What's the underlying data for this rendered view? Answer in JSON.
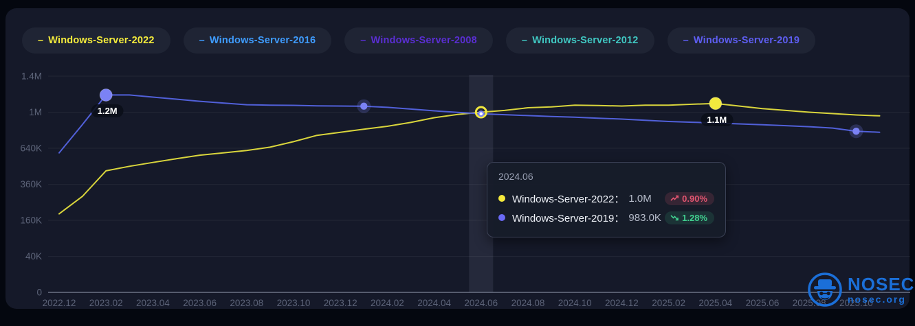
{
  "theme": {
    "page_bg": "#04070f",
    "card_bg": "#151929",
    "pill_bg": "#1f2434",
    "grid_color": "rgba(255,255,255,0.06)",
    "axis_line_color": "#7e8598",
    "tick_text_color": "#5c6378",
    "highlight_band_color": "rgba(205,215,240,0.09)",
    "badge_up_text": "#e25570",
    "badge_up_bg": "rgba(226,85,112,0.16)",
    "badge_down_text": "#41cf8f",
    "badge_down_bg": "rgba(65,207,143,0.13)"
  },
  "legend": {
    "dash": "–",
    "items": [
      {
        "label": "Windows-Server-2022",
        "color": "#f5ec3c"
      },
      {
        "label": "Windows-Server-2016",
        "color": "#3f9cfe"
      },
      {
        "label": "Windows-Server-2008",
        "color": "#5a2ed2"
      },
      {
        "label": "Windows-Server-2012",
        "color": "#40c7c2"
      },
      {
        "label": "Windows-Server-2019",
        "color": "#5e5ef2"
      }
    ]
  },
  "chart_data": {
    "type": "line",
    "y_scale": "sqrt",
    "y_max": 1440000,
    "grid": true,
    "y_ticks": [
      {
        "value": 1440000,
        "label": "1.4M"
      },
      {
        "value": 1000000,
        "label": "1M"
      },
      {
        "value": 640000,
        "label": "640K"
      },
      {
        "value": 360000,
        "label": "360K"
      },
      {
        "value": 160000,
        "label": "160K"
      },
      {
        "value": 40000,
        "label": "40K"
      },
      {
        "value": 0,
        "label": "0"
      }
    ],
    "x": [
      "2022.12",
      "2023.01",
      "2023.02",
      "2023.03",
      "2023.04",
      "2023.05",
      "2023.06",
      "2023.07",
      "2023.08",
      "2023.09",
      "2023.10",
      "2023.11",
      "2023.12",
      "2024.01",
      "2024.02",
      "2024.03",
      "2024.04",
      "2024.05",
      "2024.06",
      "2024.07",
      "2024.08",
      "2024.09",
      "2024.10",
      "2024.11",
      "2024.12",
      "2025.01",
      "2025.02",
      "2025.03",
      "2025.04",
      "2025.05",
      "2025.06",
      "2025.07",
      "2025.08",
      "2025.09",
      "2025.10",
      "2025.11"
    ],
    "x_label_every": 2,
    "series": [
      {
        "name": "Windows-Server-2022",
        "color": "#d9d53c",
        "marker_color": "#f2e93e",
        "values": [
          190000,
          285000,
          455000,
          490000,
          520000,
          550000,
          580000,
          600000,
          620000,
          650000,
          700000,
          760000,
          790000,
          820000,
          850000,
          890000,
          940000,
          975000,
          1000000,
          1020000,
          1050000,
          1060000,
          1080000,
          1075000,
          1070000,
          1080000,
          1080000,
          1090000,
          1100000,
          1070000,
          1040000,
          1020000,
          1000000,
          985000,
          970000,
          960000
        ]
      },
      {
        "name": "Windows-Server-2019",
        "color": "#5160d9",
        "marker_color": "#7b82f5",
        "values": [
          600000,
          870000,
          1200000,
          1200000,
          1175000,
          1150000,
          1125000,
          1105000,
          1085000,
          1080000,
          1078000,
          1072000,
          1070000,
          1068000,
          1055000,
          1035000,
          1015000,
          998000,
          983000,
          973000,
          963000,
          953000,
          945000,
          935000,
          925000,
          912000,
          900000,
          892000,
          884000,
          875000,
          866000,
          856000,
          846000,
          832000,
          800000,
          790000
        ]
      }
    ],
    "markers": [
      {
        "series": 1,
        "index": 2,
        "kind": "big"
      },
      {
        "series": 0,
        "index": 28,
        "kind": "big"
      },
      {
        "series": 1,
        "index": 13,
        "kind": "glow"
      },
      {
        "series": 1,
        "index": 34,
        "kind": "glow"
      }
    ],
    "annotations": [
      {
        "label": "1.2M",
        "series": 1,
        "index": 2
      },
      {
        "label": "1.1M",
        "series": 0,
        "index": 28
      }
    ],
    "highlight_x": "2024.06"
  },
  "tooltip": {
    "title": "2024.06",
    "rows": [
      {
        "label": "Windows-Server-2022：",
        "value": "1.0M",
        "change": "0.90%",
        "trend": "up",
        "dot_color": "#f5e93c"
      },
      {
        "label": "Windows-Server-2019：",
        "value": "983.0K",
        "change": "1.28%",
        "trend": "down",
        "dot_color": "#6a6af6"
      }
    ]
  },
  "watermark": {
    "brand": "NOSEC",
    "domain": "nosec.org",
    "color": "#1b6fd8"
  }
}
